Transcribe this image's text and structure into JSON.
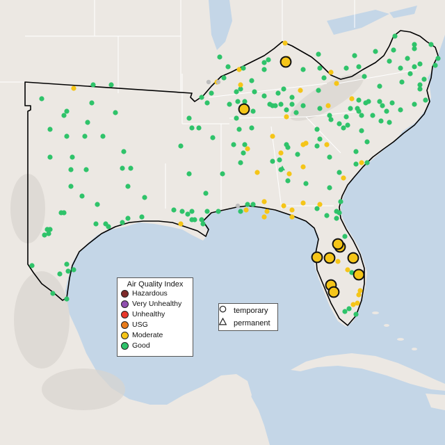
{
  "legend": {
    "title": "Air Quality Index",
    "items": [
      {
        "label": "Hazardous",
        "color": "#7e2a2a"
      },
      {
        "label": "Very Unhealthy",
        "color": "#8f4fae"
      },
      {
        "label": "Unhealthy",
        "color": "#e8382c"
      },
      {
        "label": "USG",
        "color": "#e87b1a"
      },
      {
        "label": "Moderate",
        "color": "#f5c518"
      },
      {
        "label": "Good",
        "color": "#2fc36a"
      }
    ]
  },
  "shape_legend": {
    "items": [
      {
        "label": "temporary",
        "shape": "circle-icon"
      },
      {
        "label": "permanent",
        "shape": "triangle-icon"
      }
    ]
  },
  "colors": {
    "water": "#c4d6e7",
    "land": "#ece8e3",
    "outline": "#000000",
    "moderate": "#f5c518",
    "good": "#2fc36a"
  }
}
